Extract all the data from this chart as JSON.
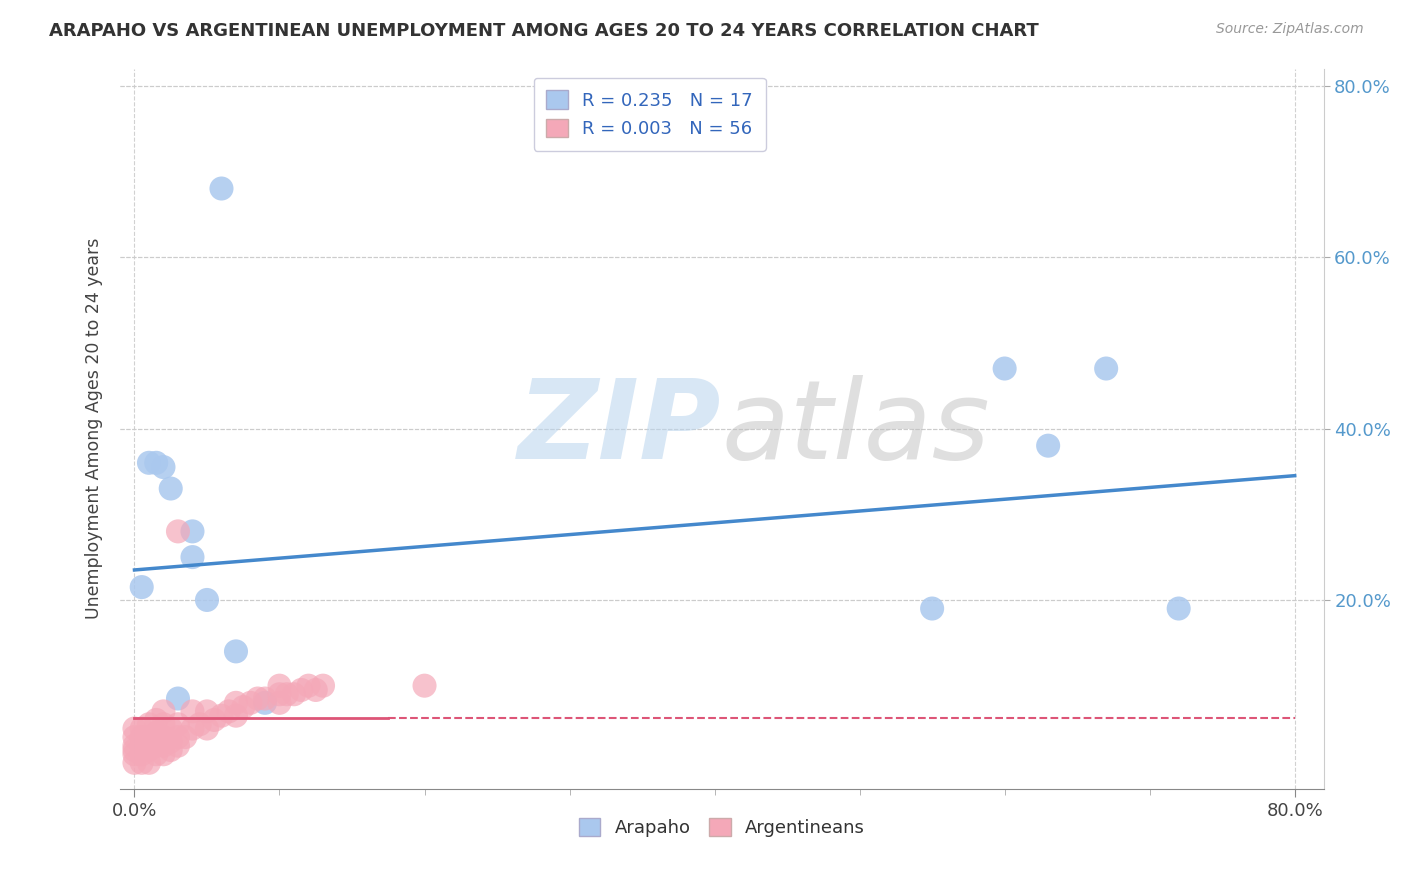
{
  "title": "ARAPAHO VS ARGENTINEAN UNEMPLOYMENT AMONG AGES 20 TO 24 YEARS CORRELATION CHART",
  "source_text": "Source: ZipAtlas.com",
  "ylabel": "Unemployment Among Ages 20 to 24 years",
  "xlabel": "",
  "xlim": [
    -0.01,
    0.82
  ],
  "ylim": [
    -0.02,
    0.82
  ],
  "xtick_major": [
    0.0,
    0.8
  ],
  "xtick_major_labels": [
    "0.0%",
    "80.0%"
  ],
  "xtick_minor": [
    0.1,
    0.2,
    0.3,
    0.4,
    0.5,
    0.6,
    0.7
  ],
  "ytick_major": [
    0.2,
    0.4,
    0.6,
    0.8
  ],
  "ytick_major_labels": [
    "20.0%",
    "40.0%",
    "60.0%",
    "80.0%"
  ],
  "legend_R_arapaho": "0.235",
  "legend_N_arapaho": "17",
  "legend_R_argentinean": "0.003",
  "legend_N_argentinean": "56",
  "arapaho_color": "#aac8ee",
  "argentinean_color": "#f4a8b8",
  "arapaho_line_color": "#4488cc",
  "argentinean_line_color": "#dd5577",
  "background_color": "#ffffff",
  "arapaho_scatter_x": [
    0.005,
    0.01,
    0.015,
    0.02,
    0.025,
    0.03,
    0.04,
    0.04,
    0.05,
    0.06,
    0.07,
    0.09,
    0.55,
    0.6,
    0.63,
    0.67,
    0.72
  ],
  "arapaho_scatter_y": [
    0.215,
    0.36,
    0.36,
    0.355,
    0.33,
    0.085,
    0.28,
    0.25,
    0.2,
    0.68,
    0.14,
    0.08,
    0.19,
    0.47,
    0.38,
    0.47,
    0.19
  ],
  "argentinean_scatter_x": [
    0.0,
    0.0,
    0.0,
    0.0,
    0.0,
    0.0,
    0.005,
    0.005,
    0.005,
    0.005,
    0.005,
    0.01,
    0.01,
    0.01,
    0.01,
    0.015,
    0.015,
    0.015,
    0.015,
    0.02,
    0.02,
    0.02,
    0.02,
    0.02,
    0.025,
    0.025,
    0.025,
    0.03,
    0.03,
    0.03,
    0.03,
    0.035,
    0.04,
    0.04,
    0.045,
    0.05,
    0.05,
    0.055,
    0.06,
    0.065,
    0.07,
    0.07,
    0.075,
    0.08,
    0.085,
    0.09,
    0.1,
    0.1,
    0.1,
    0.105,
    0.11,
    0.115,
    0.12,
    0.125,
    0.13,
    0.2
  ],
  "argentinean_scatter_y": [
    0.01,
    0.02,
    0.025,
    0.03,
    0.04,
    0.05,
    0.01,
    0.02,
    0.03,
    0.04,
    0.05,
    0.01,
    0.025,
    0.04,
    0.055,
    0.02,
    0.03,
    0.045,
    0.06,
    0.02,
    0.03,
    0.04,
    0.055,
    0.07,
    0.025,
    0.035,
    0.05,
    0.03,
    0.04,
    0.055,
    0.28,
    0.04,
    0.05,
    0.07,
    0.055,
    0.05,
    0.07,
    0.06,
    0.065,
    0.07,
    0.065,
    0.08,
    0.075,
    0.08,
    0.085,
    0.085,
    0.08,
    0.09,
    0.1,
    0.09,
    0.09,
    0.095,
    0.1,
    0.095,
    0.1,
    0.1
  ],
  "arapaho_trend_x_start": 0.0,
  "arapaho_trend_x_end": 0.8,
  "arapaho_trend_y_start": 0.235,
  "arapaho_trend_y_end": 0.345,
  "argentinean_trend_x_start": 0.0,
  "argentinean_trend_x_end": 0.8,
  "argentinean_trend_y_start": 0.062,
  "argentinean_trend_y_end": 0.062
}
